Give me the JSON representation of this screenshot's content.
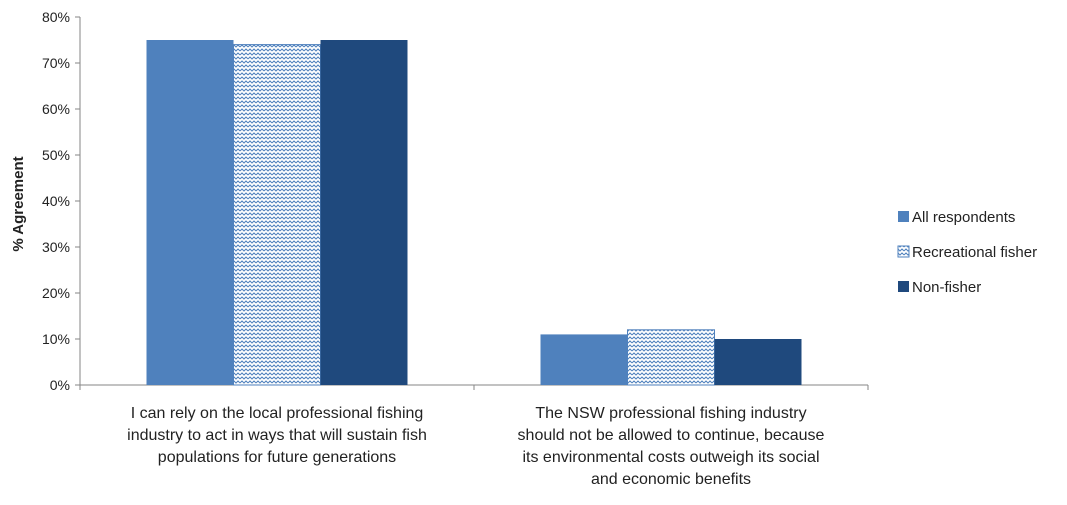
{
  "chart_data": {
    "type": "bar",
    "ylabel": "% Agreement",
    "ylim": [
      0,
      80
    ],
    "y_ticks": [
      "0%",
      "10%",
      "20%",
      "30%",
      "40%",
      "50%",
      "60%",
      "70%",
      "80%"
    ],
    "categories": [
      [
        "I can rely on the local professional fishing",
        "industry to act in ways that will sustain fish",
        "populations for future generations"
      ],
      [
        "The NSW professional fishing industry",
        "should not be allowed to continue, because",
        "its environmental costs outweigh its social",
        "and economic benefits"
      ]
    ],
    "series": [
      {
        "name": "All respondents",
        "values": [
          75,
          11
        ],
        "color": "#4f81bd",
        "pattern": "solid"
      },
      {
        "name": "Recreational fisher",
        "values": [
          74,
          12
        ],
        "color": "#4f81bd",
        "pattern": "zigzag"
      },
      {
        "name": "Non-fisher",
        "values": [
          75,
          10
        ],
        "color": "#1f497d",
        "pattern": "solid"
      }
    ],
    "grid": false,
    "legend_position": "right"
  }
}
